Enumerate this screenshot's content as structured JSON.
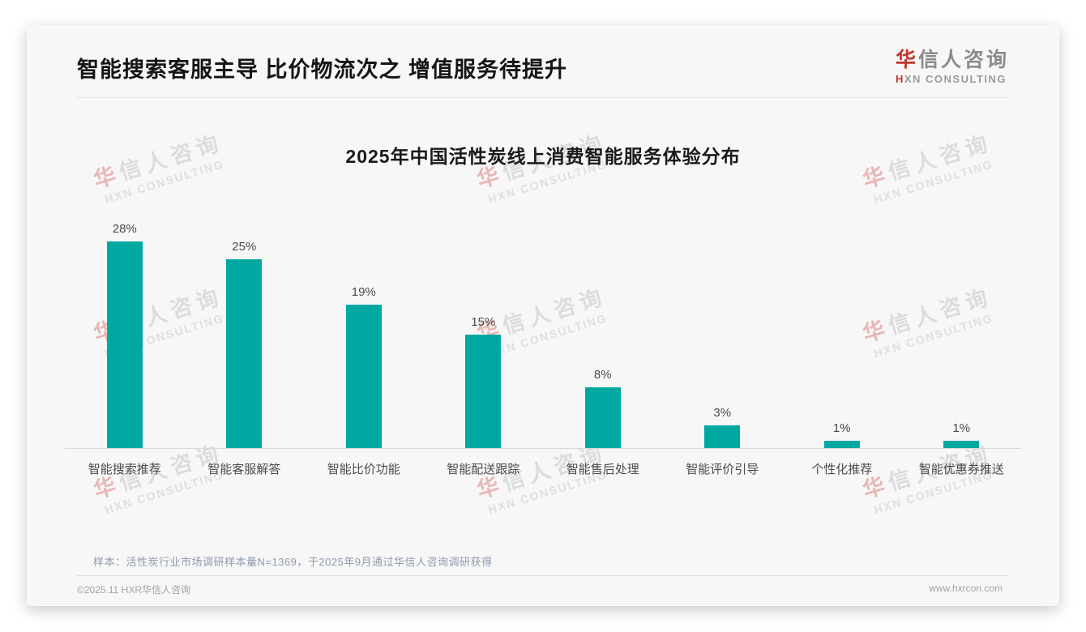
{
  "header": {
    "title": "智能搜索客服主导 比价物流次之 增值服务待提升",
    "logo": {
      "cn_first": "华",
      "cn_rest": "信人咨询",
      "en_first": "H",
      "en_rest": "XN CONSULTING"
    }
  },
  "chart_data": {
    "type": "bar",
    "title": "2025年中国活性炭线上消费智能服务体验分布",
    "categories": [
      "智能搜索推荐",
      "智能客服解答",
      "智能比价功能",
      "智能配送跟踪",
      "智能售后处理",
      "智能评价引导",
      "个性化推荐",
      "智能优惠券推送"
    ],
    "values": [
      28,
      25,
      19,
      15,
      8,
      3,
      1,
      1
    ],
    "unit": "%",
    "value_labels": [
      "28%",
      "25%",
      "19%",
      "15%",
      "8%",
      "3%",
      "1%",
      "1%"
    ],
    "bar_color": "#00a8a2",
    "ylim": [
      0,
      30
    ],
    "grid": false,
    "legend": "none",
    "xlabel": "",
    "ylabel": ""
  },
  "note": "样本：活性炭行业市场调研样本量N=1369，于2025年9月通过华信人咨询调研获得",
  "footer": {
    "copyright": "©2025.11 HXR华信人咨询",
    "website": "www.hxrcon.com"
  },
  "watermark": {
    "cn_first": "华",
    "cn_rest": "信人咨询",
    "en": "HXN CONSULTING"
  }
}
